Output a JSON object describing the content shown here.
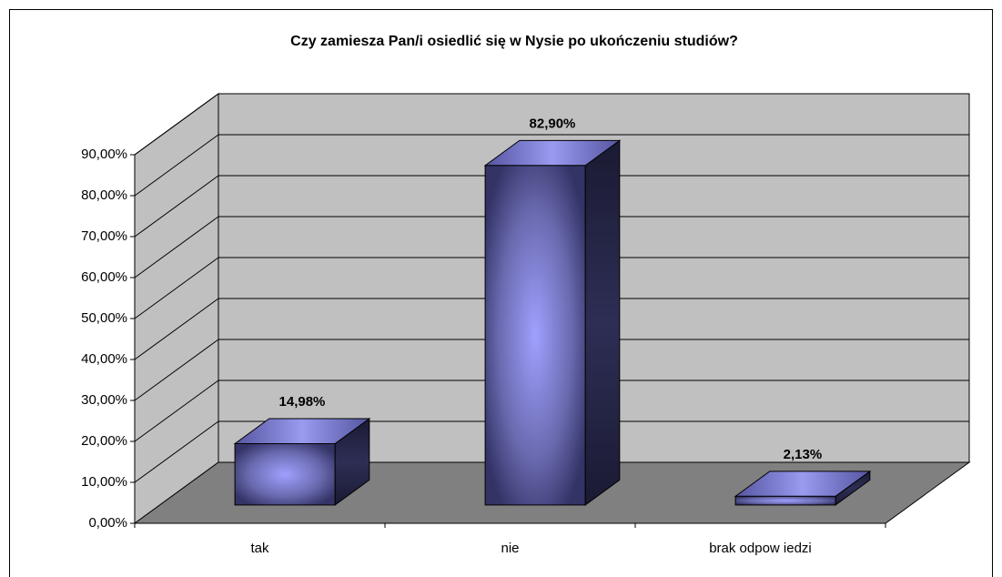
{
  "chart_data": {
    "type": "bar3d",
    "title": "Czy zamiesza Pan/i osiedlić się w Nysie po ukończeniu studiów?",
    "categories": [
      "tak",
      "nie",
      "brak odpow iedzi"
    ],
    "values": [
      14.98,
      82.9,
      2.13
    ],
    "value_labels": [
      "14,98%",
      "82,90%",
      "2,13%"
    ],
    "color": "#9999ff",
    "ylim": [
      0,
      90
    ],
    "yticks": [
      {
        "value": 0,
        "label": "0,00%"
      },
      {
        "value": 10,
        "label": "10,00%"
      },
      {
        "value": 20,
        "label": "20,00%"
      },
      {
        "value": 30,
        "label": "30,00%"
      },
      {
        "value": 40,
        "label": "40,00%"
      },
      {
        "value": 50,
        "label": "50,00%"
      },
      {
        "value": 60,
        "label": "60,00%"
      },
      {
        "value": 70,
        "label": "70,00%"
      },
      {
        "value": 80,
        "label": "80,00%"
      },
      {
        "value": 90,
        "label": "90,00%"
      }
    ],
    "grid": true
  }
}
